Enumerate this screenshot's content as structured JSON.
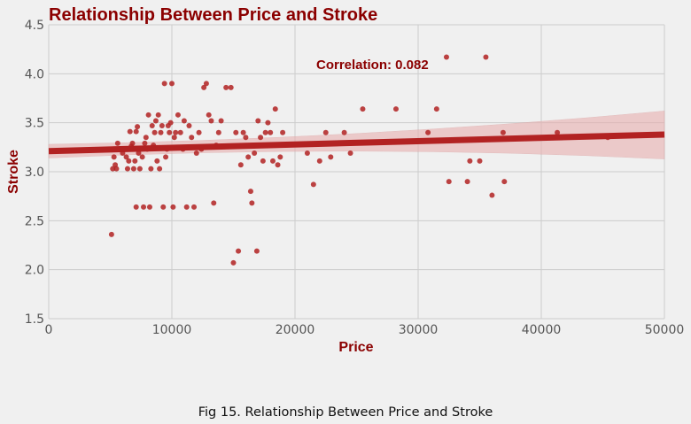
{
  "chart_data": {
    "type": "scatter",
    "title": "Relationship Between Price and Stroke",
    "xlabel": "Price",
    "ylabel": "Stroke",
    "xlim": [
      0,
      50000
    ],
    "ylim": [
      1.5,
      4.5
    ],
    "xticks": [
      "0",
      "10000",
      "20000",
      "30000",
      "40000",
      "50000"
    ],
    "yticks": [
      "1.5",
      "2.0",
      "2.5",
      "3.0",
      "3.5",
      "4.0",
      "4.5"
    ],
    "grid": true,
    "annotation": "Correlation: 0.082",
    "regression": {
      "x": [
        0,
        50000
      ],
      "y": [
        3.21,
        3.38
      ],
      "ci_low": [
        3.14,
        3.13
      ],
      "ci_high": [
        3.28,
        3.62
      ]
    },
    "points": [
      [
        5100,
        2.36
      ],
      [
        5200,
        3.03
      ],
      [
        5300,
        3.15
      ],
      [
        5400,
        3.07
      ],
      [
        5500,
        3.03
      ],
      [
        5600,
        3.29
      ],
      [
        5800,
        3.23
      ],
      [
        6000,
        3.19
      ],
      [
        6200,
        3.23
      ],
      [
        6300,
        3.15
      ],
      [
        6400,
        3.03
      ],
      [
        6500,
        3.11
      ],
      [
        6600,
        3.41
      ],
      [
        6700,
        3.26
      ],
      [
        6800,
        3.29
      ],
      [
        6900,
        3.03
      ],
      [
        7000,
        3.11
      ],
      [
        7100,
        3.41
      ],
      [
        7100,
        2.64
      ],
      [
        7200,
        3.46
      ],
      [
        7300,
        3.19
      ],
      [
        7400,
        3.03
      ],
      [
        7500,
        3.23
      ],
      [
        7600,
        3.15
      ],
      [
        7700,
        2.64
      ],
      [
        7800,
        3.29
      ],
      [
        7900,
        3.35
      ],
      [
        8000,
        3.23
      ],
      [
        8100,
        3.58
      ],
      [
        8200,
        2.64
      ],
      [
        8300,
        3.03
      ],
      [
        8400,
        3.47
      ],
      [
        8500,
        3.27
      ],
      [
        8600,
        3.4
      ],
      [
        8700,
        3.52
      ],
      [
        8800,
        3.11
      ],
      [
        8900,
        3.58
      ],
      [
        9000,
        3.03
      ],
      [
        9100,
        3.4
      ],
      [
        9200,
        3.47
      ],
      [
        9300,
        2.64
      ],
      [
        9400,
        3.9
      ],
      [
        9500,
        3.15
      ],
      [
        9600,
        3.23
      ],
      [
        9700,
        3.47
      ],
      [
        9800,
        3.4
      ],
      [
        9900,
        3.5
      ],
      [
        10000,
        3.9
      ],
      [
        10100,
        2.64
      ],
      [
        10200,
        3.35
      ],
      [
        10300,
        3.4
      ],
      [
        10500,
        3.58
      ],
      [
        10700,
        3.4
      ],
      [
        10900,
        3.23
      ],
      [
        11000,
        3.52
      ],
      [
        11200,
        2.64
      ],
      [
        11400,
        3.47
      ],
      [
        11600,
        3.35
      ],
      [
        11800,
        2.64
      ],
      [
        12000,
        3.19
      ],
      [
        12200,
        3.4
      ],
      [
        12400,
        3.23
      ],
      [
        12600,
        3.86
      ],
      [
        12800,
        3.9
      ],
      [
        13000,
        3.58
      ],
      [
        13200,
        3.52
      ],
      [
        13400,
        2.68
      ],
      [
        13600,
        3.27
      ],
      [
        13800,
        3.4
      ],
      [
        14000,
        3.52
      ],
      [
        14400,
        3.86
      ],
      [
        14800,
        3.86
      ],
      [
        15000,
        2.07
      ],
      [
        15200,
        3.4
      ],
      [
        15400,
        2.19
      ],
      [
        15600,
        3.07
      ],
      [
        15800,
        3.4
      ],
      [
        16000,
        3.35
      ],
      [
        16200,
        3.15
      ],
      [
        16400,
        2.8
      ],
      [
        16500,
        2.68
      ],
      [
        16700,
        3.19
      ],
      [
        16900,
        2.19
      ],
      [
        17000,
        3.52
      ],
      [
        17200,
        3.35
      ],
      [
        17400,
        3.11
      ],
      [
        17600,
        3.4
      ],
      [
        17800,
        3.5
      ],
      [
        18000,
        3.4
      ],
      [
        18200,
        3.11
      ],
      [
        18400,
        3.64
      ],
      [
        18600,
        3.07
      ],
      [
        18800,
        3.15
      ],
      [
        19000,
        3.4
      ],
      [
        21000,
        3.19
      ],
      [
        21500,
        2.87
      ],
      [
        22000,
        3.11
      ],
      [
        22500,
        3.4
      ],
      [
        22900,
        3.15
      ],
      [
        24000,
        3.4
      ],
      [
        24500,
        3.19
      ],
      [
        25500,
        3.64
      ],
      [
        28200,
        3.64
      ],
      [
        30800,
        3.4
      ],
      [
        31500,
        3.64
      ],
      [
        32300,
        4.17
      ],
      [
        32500,
        2.9
      ],
      [
        34000,
        2.9
      ],
      [
        34200,
        3.11
      ],
      [
        35000,
        3.11
      ],
      [
        35500,
        4.17
      ],
      [
        36000,
        2.76
      ],
      [
        36900,
        3.4
      ],
      [
        37000,
        2.9
      ],
      [
        41300,
        3.4
      ],
      [
        45400,
        3.35
      ]
    ]
  },
  "caption": "Fig 15. Relationship Between Price and Stroke",
  "colors": {
    "points": "#b22222",
    "line": "#b22222",
    "band": "#e8b0b0",
    "title": "#8b0000",
    "grid": "#cccccc"
  }
}
